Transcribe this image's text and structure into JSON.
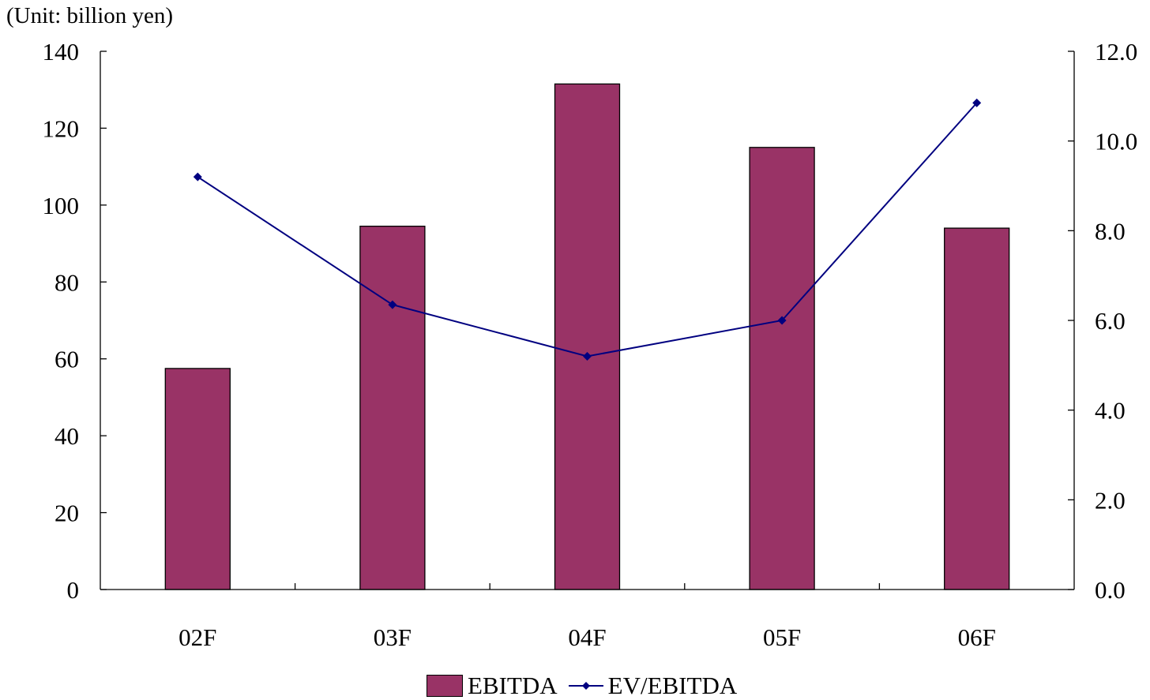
{
  "unit_label": "(Unit: billion yen)",
  "chart_data": {
    "type": "bar",
    "categories": [
      "02F",
      "03F",
      "04F",
      "05F",
      "06F"
    ],
    "series": [
      {
        "name": "EBITDA",
        "type": "bar",
        "axis": "left",
        "values": [
          57.5,
          94.5,
          131.5,
          115,
          94
        ],
        "color": "#993366"
      },
      {
        "name": "EV/EBITDA",
        "type": "line",
        "axis": "right",
        "values": [
          9.2,
          6.35,
          5.2,
          6.0,
          10.85
        ],
        "color": "#000080"
      }
    ],
    "y_left": {
      "min": 0,
      "max": 140,
      "ticks": [
        "0",
        "20",
        "40",
        "60",
        "80",
        "100",
        "120",
        "140"
      ]
    },
    "y_right": {
      "min": 0,
      "max": 12,
      "ticks": [
        "0.0",
        "2.0",
        "4.0",
        "6.0",
        "8.0",
        "10.0",
        "12.0"
      ]
    },
    "grid": false,
    "legend_position": "bottom"
  }
}
